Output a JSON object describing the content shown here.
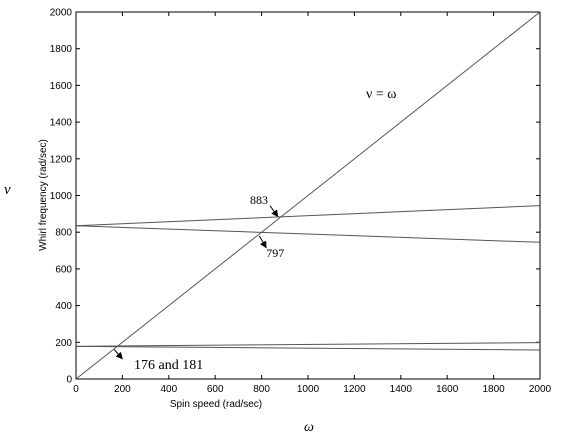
{
  "chart_data": {
    "type": "line",
    "xlabel": "Spin speed (rad/sec)",
    "ylabel": "Whirl frequency (rad/sec)",
    "outer_xlabel": "ω",
    "outer_ylabel": "ν",
    "xlim": [
      0,
      2000
    ],
    "ylim": [
      0,
      2000
    ],
    "xticks": [
      0,
      200,
      400,
      600,
      800,
      1000,
      1200,
      1400,
      1600,
      1800,
      2000
    ],
    "yticks": [
      0,
      200,
      400,
      600,
      800,
      1000,
      1200,
      1400,
      1600,
      1800,
      2000
    ],
    "grid": false,
    "series": [
      {
        "name": "ν = ω",
        "x": [
          0,
          2000
        ],
        "y": [
          0,
          2000
        ]
      },
      {
        "x": [
          0,
          2000
        ],
        "y": [
          835,
          945
        ]
      },
      {
        "x": [
          0,
          2000
        ],
        "y": [
          835,
          745
        ]
      },
      {
        "x": [
          0,
          2000
        ],
        "y": [
          178,
          198
        ]
      },
      {
        "x": [
          0,
          2000
        ],
        "y": [
          178,
          158
        ]
      }
    ],
    "annotations": [
      {
        "text": "ν = ω",
        "x": 1250,
        "y": 1530
      },
      {
        "text": "883",
        "x": 750,
        "y": 955,
        "arrow_to": [
          870,
          885
        ]
      },
      {
        "text": "797",
        "x": 820,
        "y": 665,
        "arrow_from": [
          790,
          780
        ],
        "arrow_to": [
          820,
          715
        ]
      },
      {
        "text": "176 and 181",
        "x": 250,
        "y": 55,
        "arrow_from": [
          165,
          160
        ],
        "arrow_to": [
          200,
          110
        ]
      }
    ]
  }
}
